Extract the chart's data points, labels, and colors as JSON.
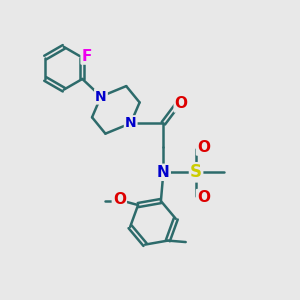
{
  "bg_color": "#e8e8e8",
  "bond_color": "#2d6b6b",
  "N_color": "#0000cc",
  "O_color": "#dd0000",
  "S_color": "#cccc00",
  "F_color": "#ee00ee",
  "line_width": 1.8,
  "font_size": 10,
  "fig_w": 3.0,
  "fig_h": 3.0,
  "dpi": 100,
  "xlim": [
    0,
    10
  ],
  "ylim": [
    0,
    10
  ]
}
